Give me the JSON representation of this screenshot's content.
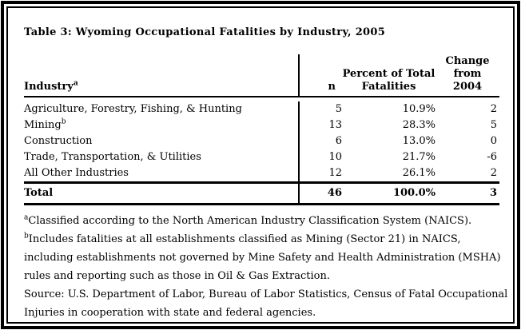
{
  "title": "Table 3: Wyoming Occupational Fatalities by Industry, 2005",
  "colors": {
    "text": "#000000",
    "background": "#ffffff",
    "border": "#000000"
  },
  "table": {
    "columns": {
      "industry": {
        "label": "Industry",
        "sup": "a"
      },
      "n": "n",
      "pct": [
        "Percent of Total",
        "Fatalities"
      ],
      "chg": [
        "Change",
        "from",
        "2004"
      ]
    },
    "rows": [
      {
        "name": "Agriculture, Forestry, Fishing, & Hunting",
        "sup": "",
        "n": "5",
        "pct": "10.9%",
        "chg": "2"
      },
      {
        "name": "Mining",
        "sup": "b",
        "n": "13",
        "pct": "28.3%",
        "chg": "5"
      },
      {
        "name": "Construction",
        "sup": "",
        "n": "6",
        "pct": "13.0%",
        "chg": "0"
      },
      {
        "name": "Trade, Transportation, & Utilities",
        "sup": "",
        "n": "10",
        "pct": "21.7%",
        "chg": "-6"
      },
      {
        "name": "All Other Industries",
        "sup": "",
        "n": "12",
        "pct": "26.1%",
        "chg": "2"
      }
    ],
    "total": {
      "name": "Total",
      "n": "46",
      "pct": "100.0%",
      "chg": "3"
    }
  },
  "footnotes": [
    {
      "marker": "a",
      "lines": [
        "Classified according to the North American Industry Classification System (NAICS)."
      ]
    },
    {
      "marker": "b",
      "lines": [
        "Includes fatalities at all establishments classified as Mining (Sector 21) in NAICS,",
        "including establishments not governed by Mine Safety and Health Administration (MSHA)",
        "rules and reporting such as those in Oil & Gas Extraction."
      ]
    },
    {
      "marker": "",
      "lines": [
        "Source: U.S. Department of Labor, Bureau of Labor Statistics, Census of Fatal Occupational",
        "Injuries in cooperation with state and federal agencies."
      ]
    }
  ]
}
